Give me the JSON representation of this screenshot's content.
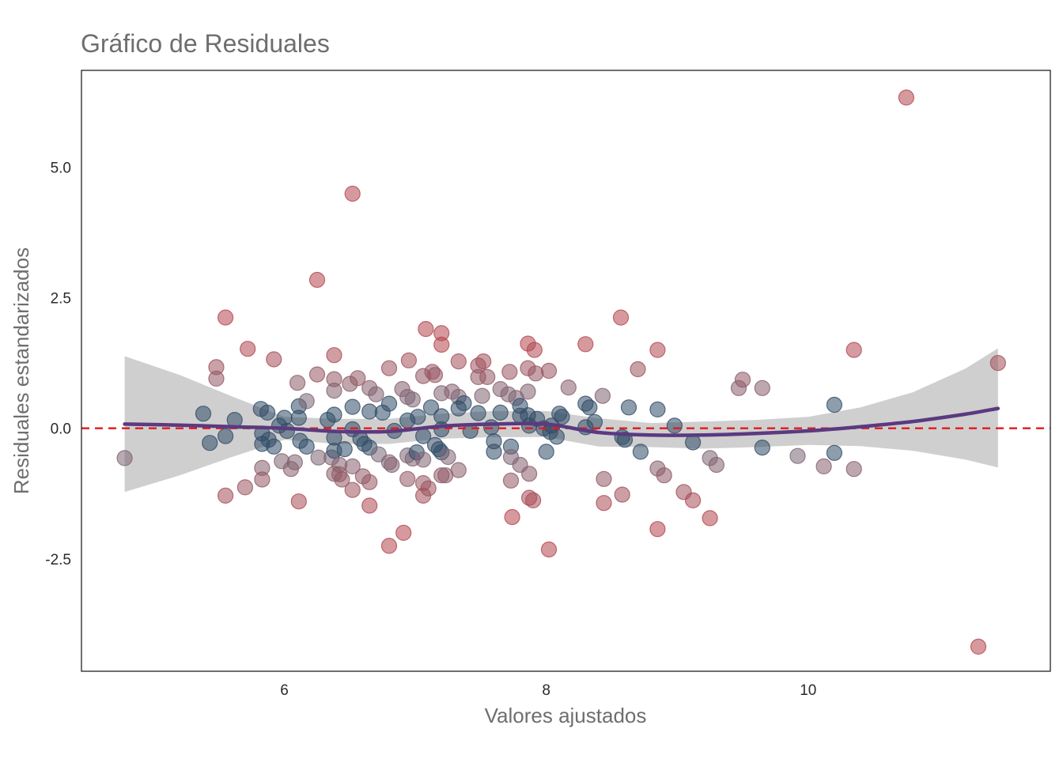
{
  "chart_data": {
    "type": "scatter",
    "title": "Gráfico de Residuales",
    "xlabel": "Valores ajustados",
    "ylabel": "Residuales estandarizados",
    "xlim": [
      4.45,
      11.85
    ],
    "ylim": [
      -4.65,
      6.85
    ],
    "x_ticks": [
      6,
      8,
      10
    ],
    "x_tick_labels": [
      "6",
      "8",
      "10"
    ],
    "y_ticks": [
      5.0,
      2.5,
      0.0,
      -2.5
    ],
    "y_tick_labels": [
      "5.0",
      "2.5",
      "0.0",
      "-2.5"
    ],
    "grid": false,
    "legend": "none",
    "reference_line": {
      "y": 0,
      "style": "dashed",
      "color": "#e31a1c"
    },
    "colors": {
      "positive": "#b5474f",
      "negative": "#1f3a5a",
      "neutral": "#5e7587",
      "smooth": "#5b3a80",
      "band": "#cccccc",
      "frame": "#222222"
    },
    "smooth": {
      "x": [
        4.78,
        5.2,
        5.6,
        6.0,
        6.4,
        6.8,
        7.2,
        7.6,
        8.0,
        8.4,
        8.8,
        9.2,
        9.6,
        10.0,
        10.4,
        10.8,
        11.2,
        11.45
      ],
      "y": [
        0.08,
        0.06,
        0.03,
        0.0,
        -0.06,
        -0.06,
        0.04,
        0.08,
        0.08,
        -0.08,
        -0.13,
        -0.13,
        -0.1,
        -0.05,
        0.03,
        0.13,
        0.27,
        0.38
      ],
      "lo": [
        -1.22,
        -0.9,
        -0.55,
        -0.22,
        -0.3,
        -0.3,
        -0.2,
        -0.17,
        -0.17,
        -0.35,
        -0.36,
        -0.39,
        -0.36,
        -0.32,
        -0.34,
        -0.43,
        -0.6,
        -0.75
      ],
      "hi": [
        1.38,
        1.02,
        0.61,
        0.22,
        0.18,
        0.18,
        0.28,
        0.33,
        0.33,
        0.19,
        0.1,
        0.13,
        0.16,
        0.22,
        0.4,
        0.69,
        1.14,
        1.53
      ]
    },
    "points": [
      [
        4.78,
        -0.57
      ],
      [
        5.38,
        0.28
      ],
      [
        5.43,
        -0.28
      ],
      [
        5.48,
        1.17
      ],
      [
        5.48,
        0.95
      ],
      [
        5.55,
        2.12
      ],
      [
        5.55,
        -1.29
      ],
      [
        5.55,
        -0.15
      ],
      [
        5.62,
        0.16
      ],
      [
        5.7,
        -1.13
      ],
      [
        5.72,
        1.52
      ],
      [
        5.82,
        0.37
      ],
      [
        5.83,
        -0.1
      ],
      [
        5.83,
        -0.3
      ],
      [
        5.83,
        -0.76
      ],
      [
        5.83,
        -0.98
      ],
      [
        5.87,
        0.3
      ],
      [
        5.88,
        -0.22
      ],
      [
        5.92,
        1.32
      ],
      [
        5.92,
        -0.35
      ],
      [
        5.96,
        0.05
      ],
      [
        5.98,
        -0.63
      ],
      [
        6.0,
        0.2
      ],
      [
        6.02,
        -0.05
      ],
      [
        6.05,
        -0.78
      ],
      [
        6.08,
        -0.65
      ],
      [
        6.1,
        0.87
      ],
      [
        6.11,
        0.42
      ],
      [
        6.11,
        0.2
      ],
      [
        6.11,
        -1.4
      ],
      [
        6.12,
        -0.24
      ],
      [
        6.17,
        0.52
      ],
      [
        6.17,
        -0.35
      ],
      [
        6.25,
        2.84
      ],
      [
        6.25,
        1.03
      ],
      [
        6.26,
        -0.56
      ],
      [
        6.33,
        0.16
      ],
      [
        6.36,
        -0.56
      ],
      [
        6.38,
        1.4
      ],
      [
        6.38,
        0.94
      ],
      [
        6.38,
        0.72
      ],
      [
        6.38,
        0.26
      ],
      [
        6.38,
        -0.18
      ],
      [
        6.38,
        -0.43
      ],
      [
        6.38,
        -0.87
      ],
      [
        6.42,
        -0.7
      ],
      [
        6.42,
        -0.88
      ],
      [
        6.44,
        -0.98
      ],
      [
        6.46,
        -0.4
      ],
      [
        6.5,
        0.85
      ],
      [
        6.52,
        4.49
      ],
      [
        6.52,
        0.41
      ],
      [
        6.52,
        -0.02
      ],
      [
        6.52,
        -0.73
      ],
      [
        6.52,
        -1.18
      ],
      [
        6.56,
        0.96
      ],
      [
        6.58,
        -0.2
      ],
      [
        6.6,
        -0.92
      ],
      [
        6.61,
        -0.3
      ],
      [
        6.65,
        0.77
      ],
      [
        6.65,
        0.32
      ],
      [
        6.65,
        -0.37
      ],
      [
        6.65,
        -1.03
      ],
      [
        6.65,
        -1.48
      ],
      [
        6.7,
        0.65
      ],
      [
        6.72,
        -0.5
      ],
      [
        6.75,
        0.3
      ],
      [
        6.8,
        1.15
      ],
      [
        6.8,
        0.47
      ],
      [
        6.8,
        -0.65
      ],
      [
        6.8,
        -2.25
      ],
      [
        6.82,
        -0.7
      ],
      [
        6.84,
        -0.05
      ],
      [
        6.9,
        0.75
      ],
      [
        6.91,
        -2.0
      ],
      [
        6.94,
        0.6
      ],
      [
        6.94,
        0.15
      ],
      [
        6.94,
        -0.52
      ],
      [
        6.94,
        -0.97
      ],
      [
        6.95,
        1.3
      ],
      [
        6.98,
        0.55
      ],
      [
        6.98,
        -0.58
      ],
      [
        7.01,
        -0.46
      ],
      [
        7.02,
        0.22
      ],
      [
        7.06,
        1.0
      ],
      [
        7.06,
        -0.15
      ],
      [
        7.06,
        -0.6
      ],
      [
        7.06,
        -1.05
      ],
      [
        7.06,
        -1.29
      ],
      [
        7.08,
        1.9
      ],
      [
        7.1,
        -1.15
      ],
      [
        7.12,
        0.4
      ],
      [
        7.13,
        1.08
      ],
      [
        7.15,
        1.02
      ],
      [
        7.15,
        -0.32
      ],
      [
        7.18,
        -0.4
      ],
      [
        7.2,
        1.82
      ],
      [
        7.2,
        1.6
      ],
      [
        7.2,
        0.67
      ],
      [
        7.2,
        0.23
      ],
      [
        7.2,
        -0.02
      ],
      [
        7.2,
        -0.46
      ],
      [
        7.2,
        -0.9
      ],
      [
        7.23,
        -0.9
      ],
      [
        7.25,
        -0.55
      ],
      [
        7.28,
        0.7
      ],
      [
        7.33,
        1.28
      ],
      [
        7.33,
        0.6
      ],
      [
        7.33,
        0.38
      ],
      [
        7.33,
        -0.8
      ],
      [
        7.37,
        0.48
      ],
      [
        7.42,
        -0.05
      ],
      [
        7.48,
        1.2
      ],
      [
        7.48,
        0.98
      ],
      [
        7.48,
        0.29
      ],
      [
        7.51,
        0.62
      ],
      [
        7.52,
        1.28
      ],
      [
        7.55,
        0.98
      ],
      [
        7.58,
        0.02
      ],
      [
        7.6,
        -0.45
      ],
      [
        7.6,
        -0.25
      ],
      [
        7.65,
        0.75
      ],
      [
        7.65,
        0.3
      ],
      [
        7.71,
        0.65
      ],
      [
        7.72,
        1.08
      ],
      [
        7.73,
        -0.35
      ],
      [
        7.73,
        -0.55
      ],
      [
        7.73,
        -1.0
      ],
      [
        7.74,
        -1.7
      ],
      [
        7.77,
        0.58
      ],
      [
        7.8,
        0.43
      ],
      [
        7.8,
        0.24
      ],
      [
        7.8,
        -0.7
      ],
      [
        7.86,
        1.62
      ],
      [
        7.86,
        1.15
      ],
      [
        7.86,
        0.7
      ],
      [
        7.86,
        0.25
      ],
      [
        7.87,
        0.05
      ],
      [
        7.87,
        -0.87
      ],
      [
        7.87,
        -1.33
      ],
      [
        7.9,
        -1.38
      ],
      [
        7.91,
        1.5
      ],
      [
        7.92,
        1.05
      ],
      [
        7.93,
        0.18
      ],
      [
        7.98,
        0.0
      ],
      [
        8.0,
        -0.45
      ],
      [
        8.02,
        1.1
      ],
      [
        8.02,
        -2.32
      ],
      [
        8.03,
        -0.07
      ],
      [
        8.04,
        0.05
      ],
      [
        8.08,
        -0.16
      ],
      [
        8.1,
        0.28
      ],
      [
        8.12,
        0.22
      ],
      [
        8.17,
        0.78
      ],
      [
        8.3,
        1.61
      ],
      [
        8.3,
        0.47
      ],
      [
        8.3,
        0.02
      ],
      [
        8.33,
        0.4
      ],
      [
        8.37,
        0.12
      ],
      [
        8.43,
        0.62
      ],
      [
        8.44,
        -0.97
      ],
      [
        8.44,
        -1.43
      ],
      [
        8.57,
        2.12
      ],
      [
        8.58,
        -1.27
      ],
      [
        8.58,
        -0.17
      ],
      [
        8.6,
        -0.22
      ],
      [
        8.63,
        0.4
      ],
      [
        8.7,
        1.13
      ],
      [
        8.72,
        -0.45
      ],
      [
        8.85,
        1.5
      ],
      [
        8.85,
        0.36
      ],
      [
        8.85,
        -0.77
      ],
      [
        8.85,
        -1.93
      ],
      [
        8.9,
        -0.9
      ],
      [
        8.98,
        0.05
      ],
      [
        9.05,
        -1.22
      ],
      [
        9.12,
        -0.27
      ],
      [
        9.12,
        -1.38
      ],
      [
        9.25,
        -0.57
      ],
      [
        9.25,
        -1.72
      ],
      [
        9.3,
        -0.7
      ],
      [
        9.47,
        0.77
      ],
      [
        9.5,
        0.93
      ],
      [
        9.65,
        0.77
      ],
      [
        9.65,
        -0.37
      ],
      [
        9.92,
        -0.53
      ],
      [
        10.12,
        -0.73
      ],
      [
        10.2,
        0.45
      ],
      [
        10.2,
        -0.47
      ],
      [
        10.35,
        1.5
      ],
      [
        10.35,
        -0.78
      ],
      [
        10.75,
        6.33
      ],
      [
        11.3,
        -4.18
      ],
      [
        11.45,
        1.25
      ]
    ]
  }
}
